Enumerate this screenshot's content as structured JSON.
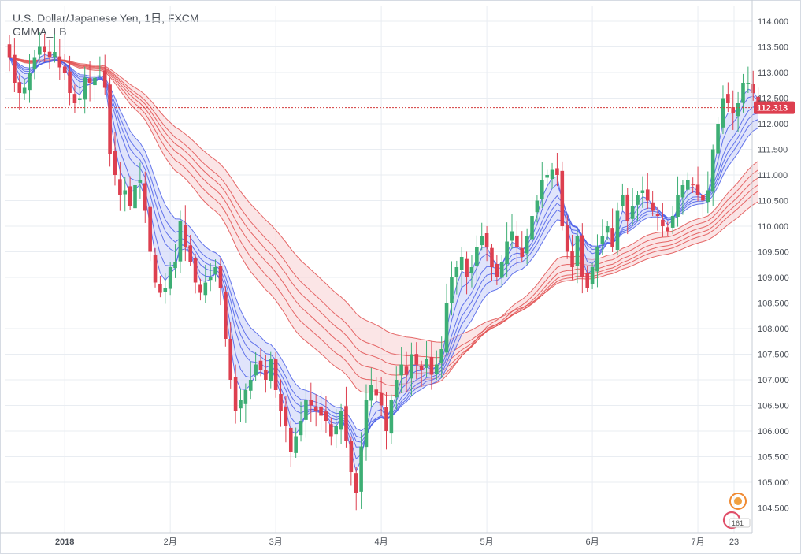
{
  "header": {
    "title": "U.S. Dollar/Japanese Yen, 1日, FXCM",
    "indicator": "GMMA_LB"
  },
  "colors": {
    "up": "#3dae74",
    "down": "#dd3f4f",
    "short_ma": "#4a5ee8",
    "long_ma": "#e04f4f",
    "short_fill": "#c7cdf7",
    "long_fill": "#f7d0d2",
    "grid": "#e9edf2",
    "last_price_line": "#d33b3b"
  },
  "watermark": {
    "icon": "tradingview-mascot-icon",
    "text": "161"
  },
  "chart_data": {
    "type": "candlestick",
    "title": "U.S. Dollar/Japanese Yen, 1日, FXCM",
    "xlabel": "",
    "ylabel": "",
    "ylim": [
      104.2,
      114.2
    ],
    "grid": true,
    "y_ticks": [
      "114.000",
      "113.500",
      "113.000",
      "112.500",
      "112.000",
      "111.500",
      "111.000",
      "110.500",
      "110.000",
      "109.500",
      "109.000",
      "108.500",
      "108.000",
      "107.500",
      "107.000",
      "106.500",
      "106.000",
      "105.500",
      "105.000",
      "104.500"
    ],
    "x_ticks": [
      "2018",
      "2月",
      "3月",
      "4月",
      "5月",
      "6月",
      "7月",
      "23"
    ],
    "last_price": "112.313",
    "series": [
      {
        "name": "Close",
        "values": [
          113.3,
          112.8,
          112.6,
          112.7,
          113.0,
          113.3,
          113.5,
          113.4,
          113.3,
          113.4,
          113.1,
          113.0,
          112.6,
          112.4,
          112.5,
          112.9,
          112.8,
          112.9,
          113.0,
          112.7,
          111.4,
          111.0,
          110.6,
          110.7,
          110.4,
          110.8,
          110.9,
          110.3,
          109.5,
          108.9,
          108.7,
          108.8,
          109.2,
          109.3,
          110.1,
          109.6,
          109.3,
          108.9,
          108.7,
          108.9,
          109.0,
          109.2,
          108.8,
          107.8,
          107.0,
          106.4,
          106.6,
          106.8,
          107.0,
          107.3,
          107.2,
          107.0,
          107.4,
          106.8,
          106.4,
          106.1,
          105.6,
          105.9,
          106.2,
          106.6,
          106.5,
          106.4,
          106.3,
          106.2,
          105.9,
          106.1,
          106.4,
          105.8,
          105.2,
          104.8,
          105.7,
          106.6,
          106.9,
          106.7,
          106.5,
          106.0,
          106.6,
          107.0,
          107.3,
          107.1,
          107.5,
          107.3,
          107.2,
          107.4,
          107.1,
          107.3,
          107.6,
          108.5,
          109.0,
          109.2,
          109.4,
          109.0,
          109.2,
          109.6,
          109.8,
          109.6,
          109.2,
          109.0,
          109.3,
          109.7,
          109.9,
          109.6,
          109.4,
          109.8,
          110.2,
          110.5,
          110.9,
          111.0,
          111.1,
          111.0,
          110.0,
          109.5,
          109.2,
          109.8,
          109.0,
          108.8,
          109.2,
          109.6,
          109.8,
          110.0,
          109.6,
          110.3,
          110.6,
          110.1,
          110.4,
          110.6,
          110.7,
          110.5,
          110.3,
          110.2,
          110.0,
          109.9,
          110.2,
          110.6,
          110.8,
          110.9,
          110.8,
          110.6,
          110.5,
          110.7,
          111.5,
          112.0,
          112.5,
          112.4,
          112.2,
          112.4,
          112.8,
          112.8,
          112.6,
          112.3
        ]
      }
    ],
    "ma_groups": [
      {
        "name": "short",
        "periods": [
          3,
          5,
          8,
          10,
          12,
          15
        ]
      },
      {
        "name": "long",
        "periods": [
          30,
          35,
          40,
          45,
          50,
          60
        ]
      }
    ]
  }
}
